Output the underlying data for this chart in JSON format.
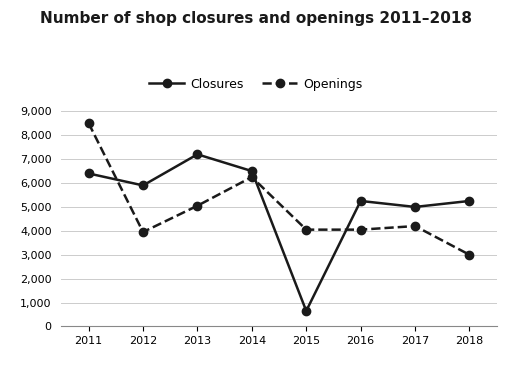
{
  "title": "Number of shop closures and openings 2011–2018",
  "years": [
    2011,
    2012,
    2013,
    2014,
    2015,
    2016,
    2017,
    2018
  ],
  "closures": [
    6400,
    5900,
    7200,
    6500,
    650,
    5250,
    5000,
    5250
  ],
  "openings": [
    8500,
    3950,
    5050,
    6250,
    4050,
    4050,
    4200,
    3000
  ],
  "line_color": "#1a1a1a",
  "ylim": [
    0,
    9000
  ],
  "yticks": [
    0,
    1000,
    2000,
    3000,
    4000,
    5000,
    6000,
    7000,
    8000,
    9000
  ],
  "ytick_labels": [
    "0",
    "1,000",
    "2,000",
    "3,000",
    "4,000",
    "5,000",
    "6,000",
    "7,000",
    "8,000",
    "9,000"
  ],
  "legend_closures": "Closures",
  "legend_openings": "Openings",
  "title_fontsize": 11,
  "tick_fontsize": 8,
  "legend_fontsize": 9,
  "bg_color": "#ffffff",
  "grid_color": "#cccccc"
}
